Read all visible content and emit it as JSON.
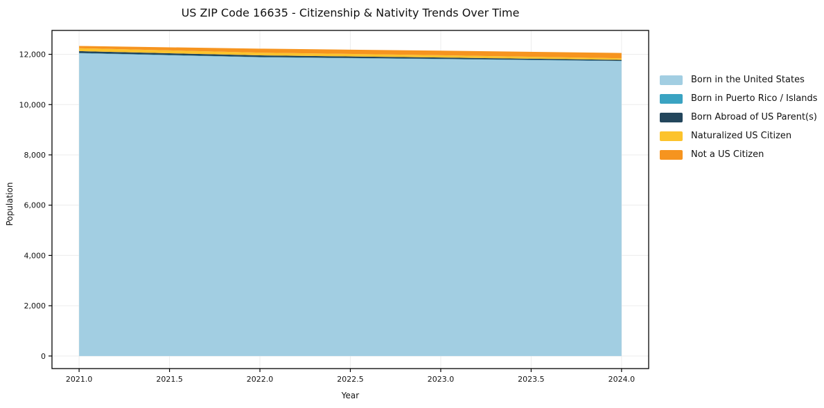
{
  "chart_data": {
    "type": "area",
    "stacked": true,
    "title": "US ZIP Code 16635 - Citizenship & Nativity Trends Over Time",
    "xlabel": "Year",
    "ylabel": "Population",
    "x": [
      2021,
      2022,
      2023,
      2024
    ],
    "series": [
      {
        "name": "Born in the United States",
        "color": "#a2cee2",
        "values": [
          12040,
          11880,
          11810,
          11730
        ]
      },
      {
        "name": "Born in Puerto Rico / Islands",
        "color": "#3aa3c2",
        "values": [
          12,
          11,
          10,
          9
        ]
      },
      {
        "name": "Born Abroad of US Parent(s)",
        "color": "#23465c",
        "values": [
          75,
          68,
          55,
          38
        ]
      },
      {
        "name": "Naturalized US Citizen",
        "color": "#fcc32c",
        "values": [
          115,
          108,
          88,
          65
        ]
      },
      {
        "name": "Not a US Citizen",
        "color": "#f6941f",
        "values": [
          90,
          158,
          183,
          212
        ]
      }
    ],
    "xlim": [
      2020.85,
      2024.15
    ],
    "ylim": [
      -500,
      12950
    ],
    "xticks": [
      2021.0,
      2021.5,
      2022.0,
      2022.5,
      2023.0,
      2023.5,
      2024.0
    ],
    "xticklabels": [
      "2021.0",
      "2021.5",
      "2022.0",
      "2022.5",
      "2023.0",
      "2023.5",
      "2024.0"
    ],
    "yticks": [
      0,
      2000,
      4000,
      6000,
      8000,
      10000,
      12000
    ],
    "yticklabels": [
      "0",
      "2,000",
      "4,000",
      "6,000",
      "8,000",
      "10,000",
      "12,000"
    ],
    "grid": true,
    "grid_color": "#ececec",
    "axis_color": "#000000",
    "legend_position": "right"
  }
}
